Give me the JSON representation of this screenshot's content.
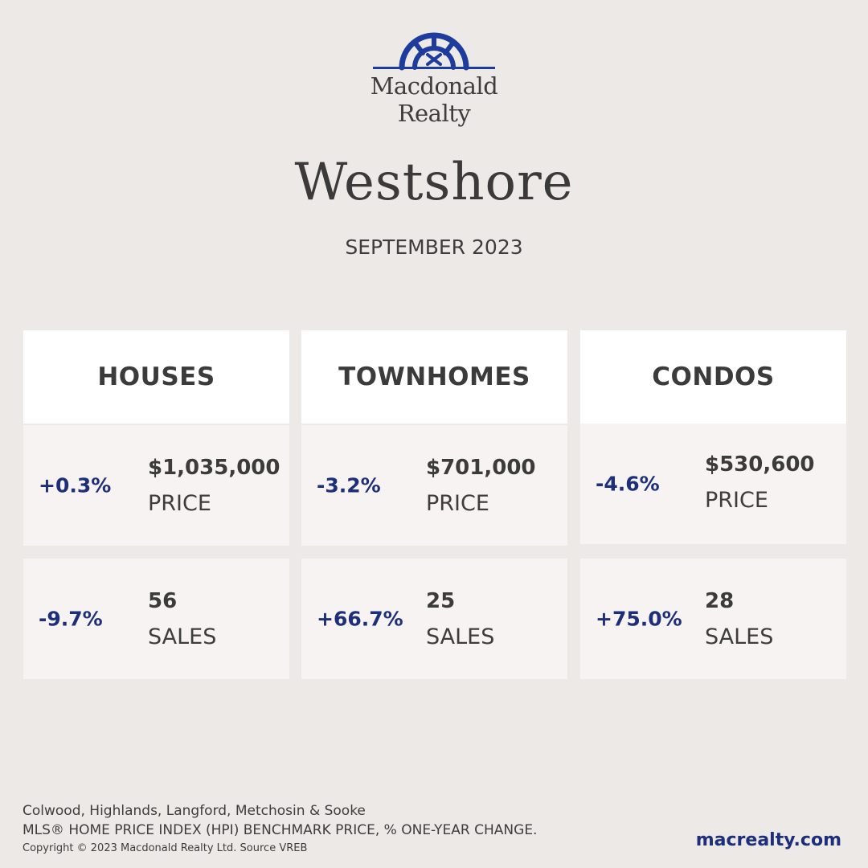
{
  "brand": {
    "line1": "Macdonald",
    "line2": "Realty",
    "color": "#1d3c9e"
  },
  "region": "Westshore",
  "period": "SEPTEMBER 2023",
  "categories": [
    {
      "title": "HOUSES",
      "price": {
        "change": "+0.3%",
        "value": "$1,035,000",
        "label": "PRICE"
      },
      "sales": {
        "change": "-9.7%",
        "value": "56",
        "label": "SALES"
      }
    },
    {
      "title": "TOWNHOMES",
      "price": {
        "change": "-3.2%",
        "value": "$701,000",
        "label": "PRICE"
      },
      "sales": {
        "change": "+66.7%",
        "value": "25",
        "label": "SALES"
      }
    },
    {
      "title": "CONDOS",
      "price": {
        "change": "-4.6%",
        "value": "$530,600",
        "label": "PRICE"
      },
      "sales": {
        "change": "+75.0%",
        "value": "28",
        "label": "SALES"
      }
    }
  ],
  "footer": {
    "areas": "Colwood, Highlands, Langford, Metchosin & Sooke",
    "note": "MLS® HOME PRICE INDEX (HPI) BENCHMARK PRICE, % ONE-YEAR CHANGE.",
    "copyright": "Copyright © 2023 Macdonald Realty Ltd. Source VREB",
    "website": "macrealty.com"
  },
  "colors": {
    "background": "#ede9e6",
    "accent": "#1d2f7a",
    "header_card": "#ffffff",
    "data_card": "#f6f3f2"
  }
}
